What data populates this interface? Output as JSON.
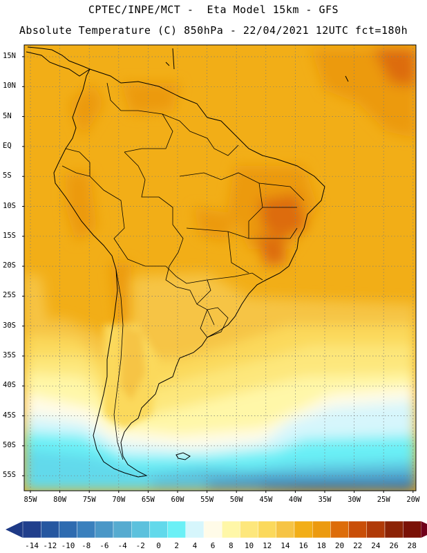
{
  "title": {
    "line1": "CPTEC/INPE/MCT -  Eta Model 15km - GFS",
    "line2": "Absolute Temperature (C) 850hPa - 22/04/2021 12UTC fct=180h"
  },
  "map": {
    "region": "South America",
    "lat_labels": [
      "15N",
      "10N",
      "5N",
      "EQ",
      "5S",
      "10S",
      "15S",
      "20S",
      "25S",
      "30S",
      "35S",
      "40S",
      "45S",
      "50S",
      "55S"
    ],
    "lon_labels": [
      "85W",
      "80W",
      "75W",
      "70W",
      "65W",
      "60W",
      "55W",
      "50W",
      "45W",
      "40W",
      "35W",
      "30W",
      "25W",
      "20W"
    ],
    "grid": "dotted"
  },
  "colorbar": {
    "labels": [
      "-14",
      "-12",
      "-10",
      "-8",
      "-6",
      "-4",
      "-2",
      "0",
      "2",
      "4",
      "6",
      "8",
      "10",
      "12",
      "14",
      "16",
      "18",
      "20",
      "22",
      "24",
      "26",
      "28"
    ],
    "colors": [
      "#213f8c",
      "#2657a0",
      "#2e6bb0",
      "#3a80bd",
      "#4a97c7",
      "#56abd0",
      "#5cc1dd",
      "#62d9eb",
      "#6bf0f6",
      "#d6f6fc",
      "#fffbe8",
      "#fff7a8",
      "#fde77c",
      "#fbd95c",
      "#f6c445",
      "#f2ae17",
      "#ec9a0f",
      "#dd6c0a",
      "#c94e08",
      "#b03a08",
      "#8c2306",
      "#7a1106"
    ],
    "under_color": "#1e3a86",
    "over_color": "#70001a"
  },
  "theme": {
    "land_outline": "#000000",
    "grid_color": "#7a7a7a",
    "default_fill": "#f2ae17"
  }
}
